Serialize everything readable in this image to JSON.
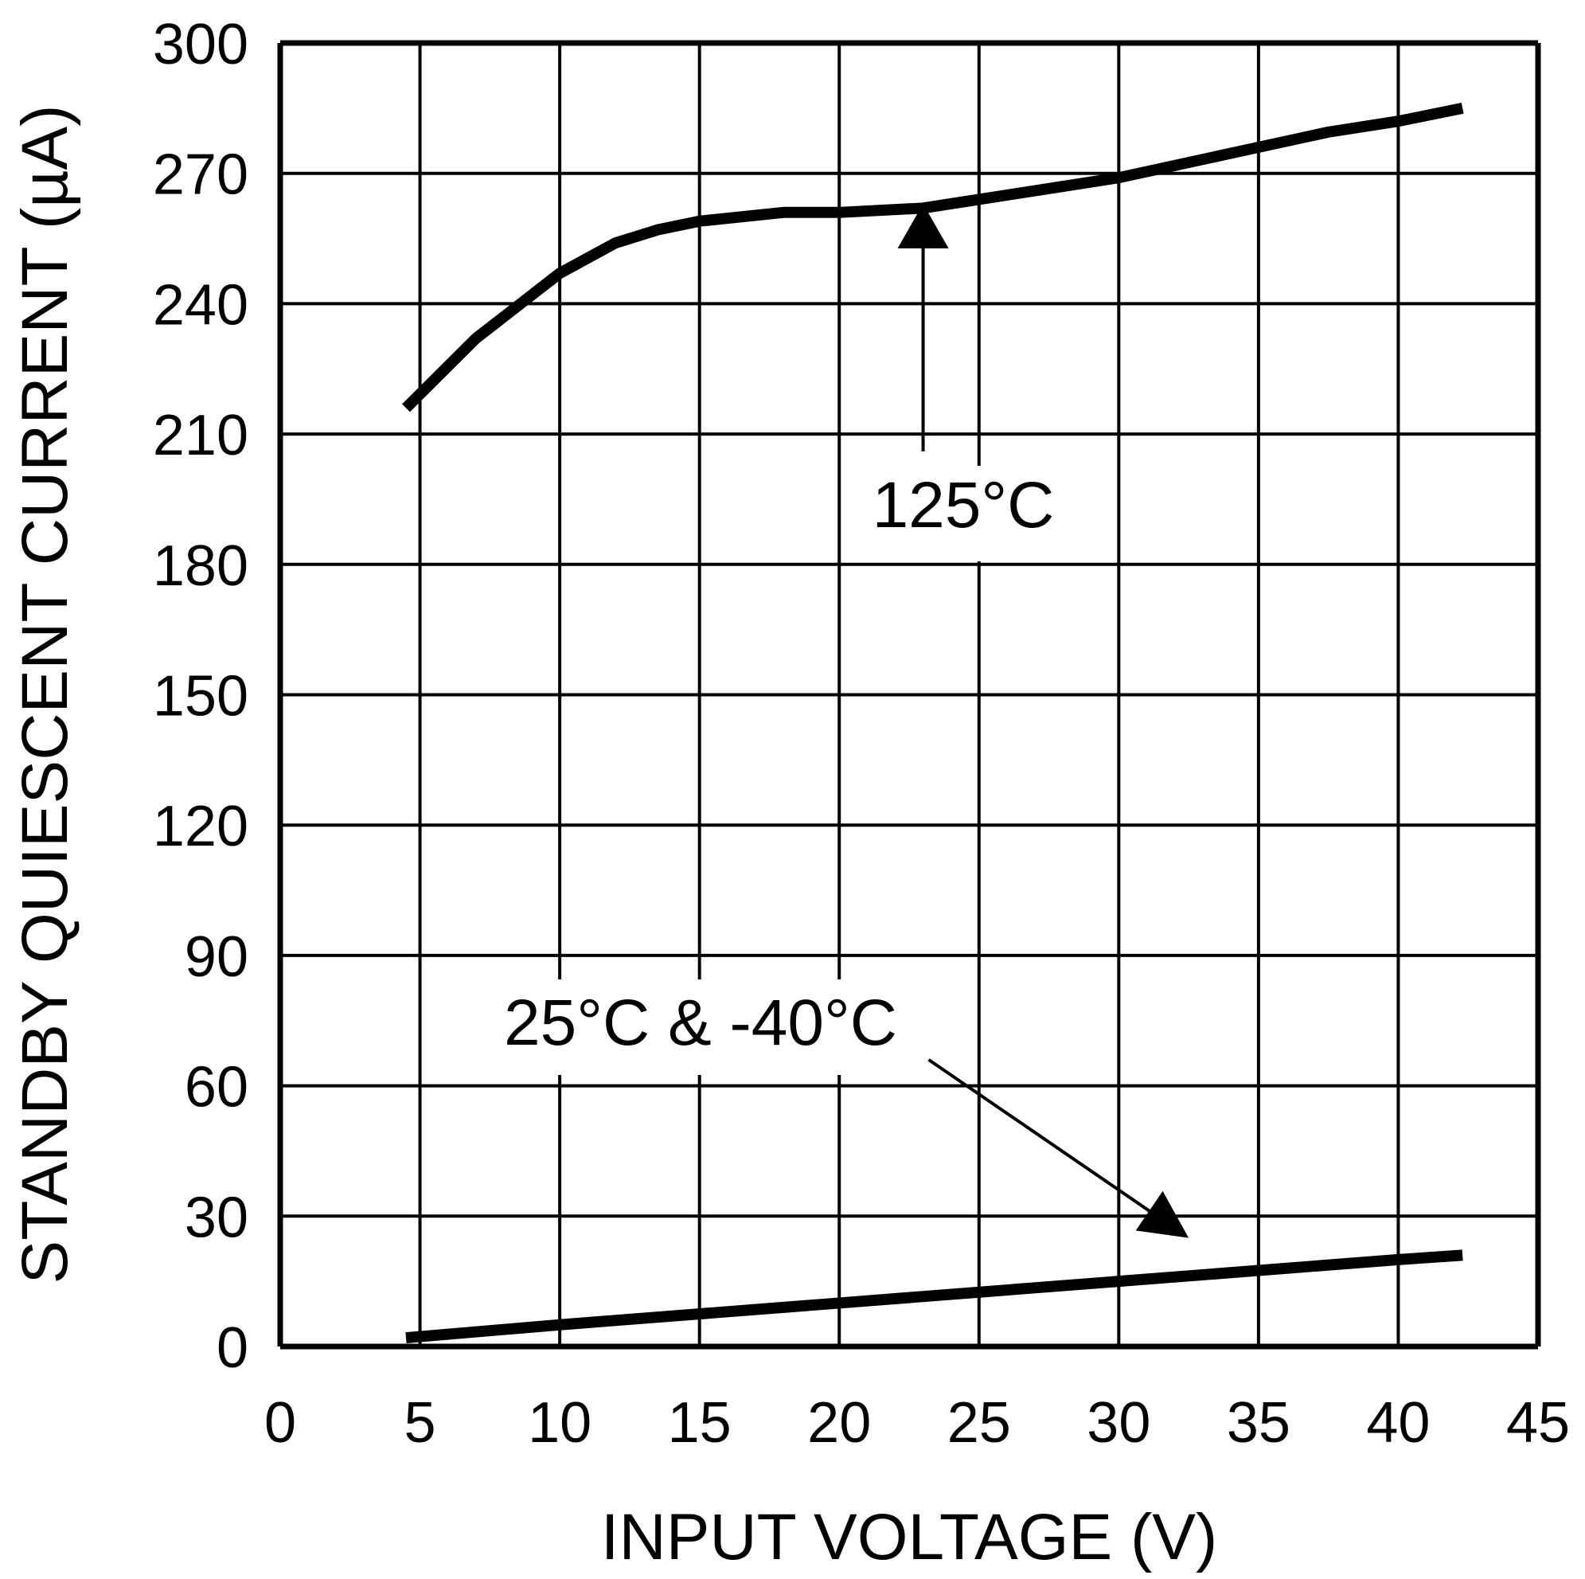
{
  "chart_data": {
    "type": "line",
    "title": "",
    "xlabel": "INPUT VOLTAGE (V)",
    "ylabel": "STANDBY QUIESCENT CURRENT (µA)",
    "xlim": [
      0,
      45
    ],
    "ylim": [
      0,
      300
    ],
    "xticks": [
      0,
      5,
      10,
      15,
      20,
      25,
      30,
      35,
      40,
      45
    ],
    "yticks": [
      0,
      30,
      60,
      90,
      120,
      150,
      180,
      210,
      240,
      270,
      300
    ],
    "grid": true,
    "line_color": "#000000",
    "series": [
      {
        "name": "125°C",
        "x": [
          4.5,
          7,
          9,
          10,
          12,
          13.5,
          15,
          18,
          20,
          23,
          25,
          27.5,
          30,
          32.5,
          35,
          37.5,
          40,
          42.3
        ],
        "y": [
          216,
          232,
          242,
          247,
          254,
          257,
          259,
          261,
          261,
          262,
          264,
          266.5,
          269,
          272.5,
          276,
          279.5,
          282,
          285
        ]
      },
      {
        "name": "25°C & -40°C",
        "x": [
          4.5,
          10,
          20,
          30,
          40,
          42.3
        ],
        "y": [
          2,
          5,
          10,
          15,
          20,
          21
        ]
      }
    ],
    "annotations": [
      {
        "text": "125°C",
        "arrow_from": [
          23,
          206
        ],
        "arrow_to": [
          23,
          263
        ]
      },
      {
        "text": "25°C & -40°C",
        "arrow_from": [
          23.2,
          66
        ],
        "arrow_to": [
          32.5,
          25
        ]
      }
    ]
  }
}
